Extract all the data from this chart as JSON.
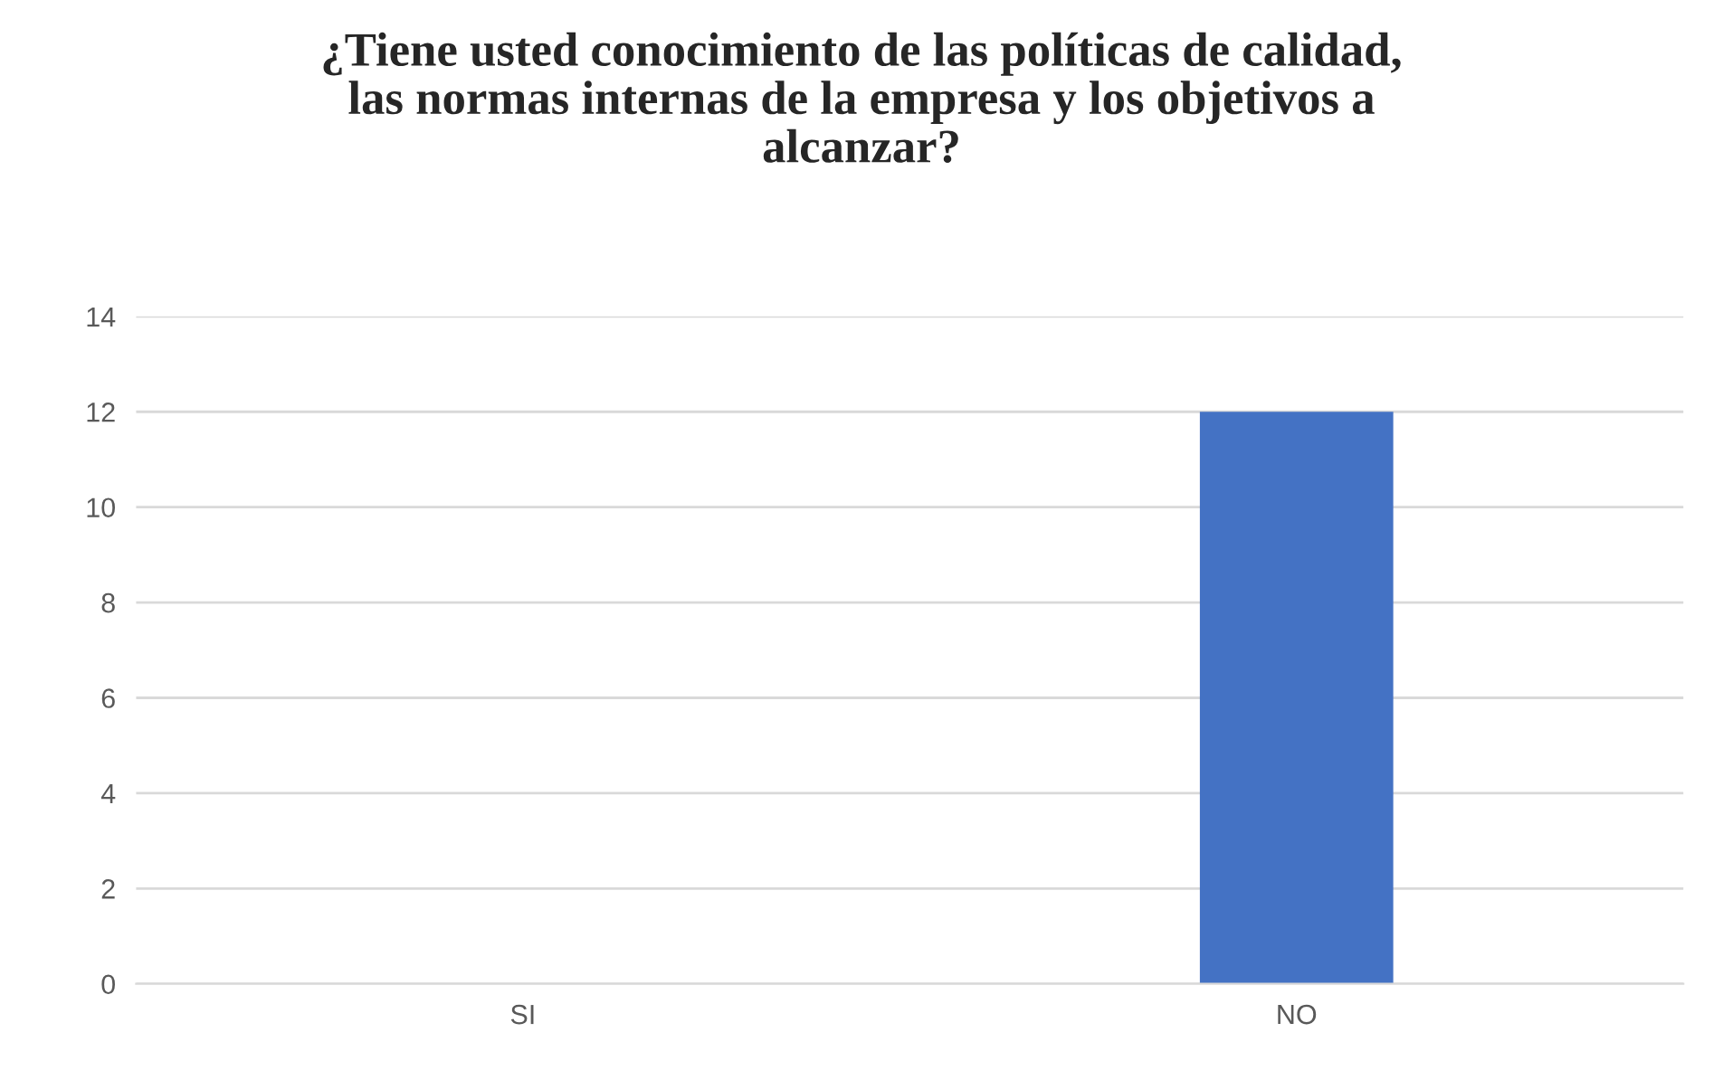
{
  "chart_data": {
    "type": "bar",
    "title": "¿Tiene usted conocimiento de las políticas de calidad,\nlas normas internas de la empresa y los objetivos a\nalcanzar?",
    "categories": [
      "SI",
      "NO"
    ],
    "values": [
      0,
      12
    ],
    "color": "#4472c4",
    "ylim": [
      0,
      14
    ],
    "yticks": [
      0,
      2,
      4,
      6,
      8,
      10,
      12,
      14
    ],
    "grid": "y",
    "legend": false
  }
}
